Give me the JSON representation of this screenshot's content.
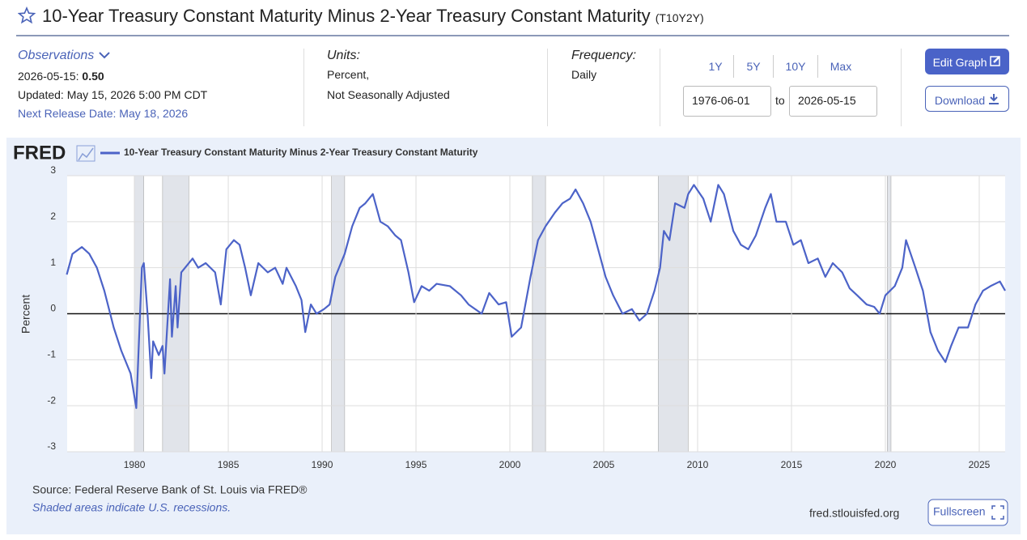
{
  "header": {
    "title": "10-Year Treasury Constant Maturity Minus 2-Year Treasury Constant Maturity",
    "series_id": "(T10Y2Y)"
  },
  "observations": {
    "label": "Observations",
    "date": "2026-05-15:",
    "value": "0.50",
    "updated": "Updated: May 15, 2026 5:00 PM CDT",
    "next_release": "Next Release Date: May 18, 2026"
  },
  "units": {
    "label": "Units:",
    "lines": [
      "Percent,",
      "Not Seasonally Adjusted"
    ]
  },
  "frequency": {
    "label": "Frequency:",
    "value": "Daily"
  },
  "ranges": [
    "1Y",
    "5Y",
    "10Y",
    "Max"
  ],
  "date_range": {
    "start": "1976-06-01",
    "separator": "to",
    "end": "2026-05-15"
  },
  "buttons": {
    "edit": "Edit Graph",
    "download": "Download",
    "fullscreen": "Fullscreen"
  },
  "chart_data": {
    "type": "line",
    "logo": "FRED",
    "y_label": "Percent",
    "source": "Source: Federal Reserve Bank of St. Louis via FRED®",
    "note": "Shaded areas indicate U.S. recessions.",
    "credit": "fred.stlouisfed.org",
    "xlim": [
      1976.42,
      2026.38
    ],
    "ylim": [
      -3,
      3
    ],
    "xticks": [
      1980,
      1985,
      1990,
      1995,
      2000,
      2005,
      2010,
      2015,
      2020,
      2025
    ],
    "yticks": [
      -3,
      -2,
      -1,
      0,
      1,
      2,
      3
    ],
    "grid": true,
    "recessions": [
      [
        1980.0,
        1980.5
      ],
      [
        1981.5,
        1982.9
      ],
      [
        1990.5,
        1991.2
      ],
      [
        2001.2,
        2001.9
      ],
      [
        2007.9,
        2009.5
      ],
      [
        2020.1,
        2020.3
      ]
    ],
    "series": [
      {
        "name": "10-Year Treasury Constant Maturity Minus 2-Year Treasury Constant Maturity",
        "color": "#4c63c8",
        "x": [
          1976.4,
          1976.7,
          1977.2,
          1977.6,
          1978.0,
          1978.4,
          1978.9,
          1979.3,
          1979.8,
          1980.1,
          1980.4,
          1980.5,
          1980.7,
          1980.9,
          1981.0,
          1981.3,
          1981.5,
          1981.6,
          1981.9,
          1982.0,
          1982.2,
          1982.3,
          1982.5,
          1983.1,
          1983.4,
          1983.8,
          1984.3,
          1984.6,
          1984.9,
          1985.3,
          1985.6,
          1985.9,
          1986.2,
          1986.6,
          1987.1,
          1987.5,
          1987.9,
          1988.1,
          1988.6,
          1988.9,
          1989.1,
          1989.4,
          1989.7,
          1990.1,
          1990.4,
          1990.7,
          1991.2,
          1991.6,
          1992.0,
          1992.3,
          1992.7,
          1993.1,
          1993.5,
          1993.9,
          1994.2,
          1994.6,
          1994.9,
          1995.3,
          1995.7,
          1996.1,
          1996.8,
          1997.4,
          1997.8,
          1998.5,
          1998.9,
          1999.4,
          1999.8,
          2000.1,
          2000.6,
          2001.1,
          2001.5,
          2001.9,
          2002.4,
          2002.8,
          2003.2,
          2003.5,
          2003.9,
          2004.3,
          2004.7,
          2005.1,
          2005.5,
          2006.0,
          2006.5,
          2006.9,
          2007.3,
          2007.7,
          2008.0,
          2008.2,
          2008.5,
          2008.8,
          2009.3,
          2009.5,
          2009.8,
          2010.3,
          2010.7,
          2011.1,
          2011.4,
          2011.9,
          2012.3,
          2012.7,
          2013.1,
          2013.6,
          2013.9,
          2014.2,
          2014.7,
          2015.1,
          2015.5,
          2015.9,
          2016.4,
          2016.8,
          2017.2,
          2017.7,
          2018.1,
          2018.5,
          2019.0,
          2019.4,
          2019.7,
          2020.0,
          2020.5,
          2020.9,
          2021.1,
          2021.6,
          2022.0,
          2022.4,
          2022.8,
          2023.2,
          2023.5,
          2023.9,
          2024.4,
          2024.8,
          2025.2,
          2025.6,
          2026.1,
          2026.38
        ],
        "values": [
          0.85,
          1.3,
          1.45,
          1.3,
          1.0,
          0.5,
          -0.3,
          -0.8,
          -1.3,
          -2.05,
          1.0,
          1.1,
          0.0,
          -1.4,
          -0.6,
          -0.9,
          -0.7,
          -1.3,
          0.75,
          -0.5,
          0.6,
          -0.3,
          0.9,
          1.2,
          1.0,
          1.1,
          0.9,
          0.2,
          1.4,
          1.6,
          1.5,
          1.0,
          0.4,
          1.1,
          0.9,
          1.0,
          0.65,
          1.0,
          0.6,
          0.3,
          -0.4,
          0.2,
          0.0,
          0.1,
          0.2,
          0.8,
          1.3,
          1.9,
          2.3,
          2.4,
          2.6,
          2.0,
          1.9,
          1.7,
          1.6,
          0.9,
          0.25,
          0.6,
          0.5,
          0.65,
          0.6,
          0.4,
          0.2,
          0.0,
          0.45,
          0.2,
          0.25,
          -0.5,
          -0.3,
          0.8,
          1.6,
          1.9,
          2.2,
          2.4,
          2.5,
          2.7,
          2.4,
          2.0,
          1.4,
          0.8,
          0.4,
          0.0,
          0.1,
          -0.15,
          0.0,
          0.5,
          1.0,
          1.8,
          1.6,
          2.4,
          2.3,
          2.6,
          2.8,
          2.5,
          2.0,
          2.8,
          2.6,
          1.8,
          1.5,
          1.4,
          1.7,
          2.3,
          2.6,
          2.0,
          2.0,
          1.5,
          1.6,
          1.1,
          1.2,
          0.8,
          1.1,
          0.9,
          0.55,
          0.4,
          0.2,
          0.15,
          0.0,
          0.4,
          0.6,
          1.0,
          1.6,
          1.0,
          0.5,
          -0.4,
          -0.8,
          -1.05,
          -0.7,
          -0.3,
          -0.3,
          0.2,
          0.5,
          0.6,
          0.7,
          0.5
        ]
      }
    ]
  }
}
